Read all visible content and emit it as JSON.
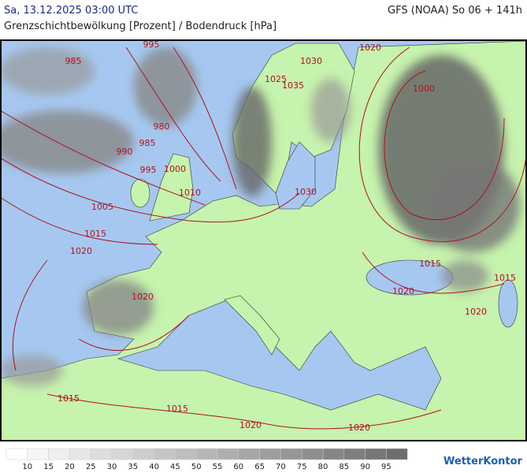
{
  "header": {
    "datetime": "Sa, 13.12.2025 03:00 UTC",
    "model": "GFS (NOAA) So 06 + 141h",
    "title": "Grenzschichtbewölkung [Prozent] / Bodendruck [hPa]"
  },
  "map": {
    "isobar_labels": [
      985,
      995,
      1030,
      1020,
      1025,
      1035,
      1000,
      980,
      985,
      990,
      995,
      1000,
      1010,
      1030,
      1005,
      1015,
      1020,
      1015,
      1015,
      1020,
      1020,
      1020,
      1015,
      1015,
      1020,
      1020
    ]
  },
  "legend": {
    "colors": [
      "#ffffff",
      "#f6f6f6",
      "#eeeeee",
      "#e6e6e6",
      "#dedede",
      "#d6d6d6",
      "#cecece",
      "#c6c6c6",
      "#bebebe",
      "#b6b6b6",
      "#aeaeae",
      "#a6a6a6",
      "#9e9e9e",
      "#969696",
      "#8e8e8e",
      "#868686",
      "#7e7e7e",
      "#767676",
      "#6e6e6e"
    ],
    "labels": [
      10,
      15,
      20,
      25,
      30,
      35,
      40,
      45,
      50,
      55,
      60,
      65,
      70,
      75,
      80,
      85,
      90,
      95
    ]
  },
  "brand": "WetterKontor"
}
